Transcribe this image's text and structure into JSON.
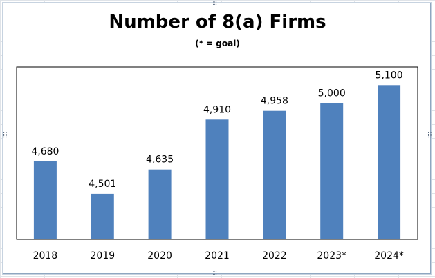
{
  "chart_data": {
    "type": "bar",
    "title": "Number of 8(a) Firms",
    "subtitle": "(* = goal)",
    "categories": [
      "2018",
      "2019",
      "2020",
      "2021",
      "2022",
      "2023*",
      "2024*"
    ],
    "values": [
      4680,
      4501,
      4635,
      4910,
      4958,
      5000,
      5100
    ],
    "data_labels": [
      "4,680",
      "4,501",
      "4,635",
      "4,910",
      "4,958",
      "5,000",
      "5,100"
    ],
    "xlabel": "",
    "ylabel": "",
    "ylim": [
      4250,
      5200
    ],
    "grid": false,
    "legend": "none",
    "bar_color": "#4f81bd"
  }
}
